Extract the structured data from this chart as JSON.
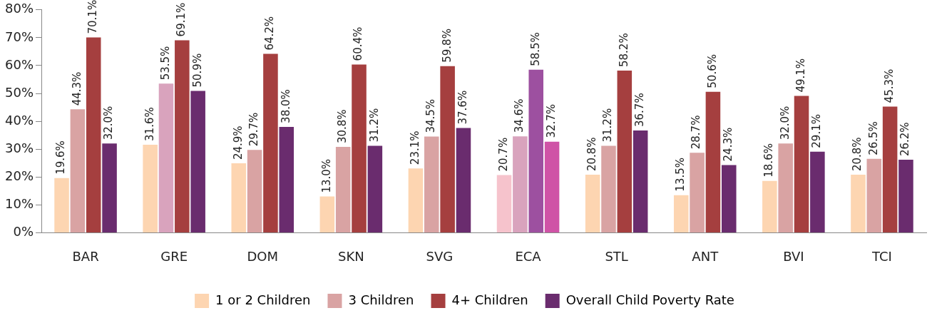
{
  "chart_data": {
    "type": "bar",
    "categories": [
      "BAR",
      "GRE",
      "DOM",
      "SKN",
      "SVG",
      "ECA",
      "STL",
      "ANT",
      "BVI",
      "TCI"
    ],
    "ylim": [
      0,
      80
    ],
    "yticks": [
      {
        "value": 0,
        "label": "0%"
      },
      {
        "value": 10,
        "label": "10%"
      },
      {
        "value": 20,
        "label": "20%"
      },
      {
        "value": 30,
        "label": "30%"
      },
      {
        "value": 40,
        "label": "40%"
      },
      {
        "value": 50,
        "label": "50%"
      },
      {
        "value": 60,
        "label": "60%"
      },
      {
        "value": 70,
        "label": "70%"
      },
      {
        "value": 80,
        "label": "80%"
      }
    ],
    "legend": "bottom",
    "series": [
      {
        "name": "1 or 2 Children",
        "color": "#fdd5b1",
        "colors": [
          "#fdd5b1",
          "#fdd5b1",
          "#fdd5b1",
          "#fdd5b1",
          "#fdd5b1",
          "#f6c3cc",
          "#fdd5b1",
          "#fdd5b1",
          "#fdd5b1",
          "#fdd5b1"
        ],
        "values": [
          19.6,
          31.6,
          24.9,
          13.0,
          23.1,
          20.7,
          20.8,
          13.5,
          18.6,
          20.8
        ],
        "value_labels": [
          "19.6%",
          "31.6%",
          "24.9%",
          "13.0%",
          "23.1%",
          "20.7%",
          "20.8%",
          "13.5%",
          "18.6%",
          "20.8%"
        ]
      },
      {
        "name": "3 Children",
        "color": "#d9a3a3",
        "colors": [
          "#d9a3a3",
          "#d9a3bd",
          "#d9a3a3",
          "#d9a3a3",
          "#d9a3a3",
          "#d9a3bd",
          "#d9a3a3",
          "#d9a3a3",
          "#d9a3a3",
          "#d9a3a3"
        ],
        "values": [
          44.3,
          53.5,
          29.7,
          30.8,
          34.5,
          34.6,
          31.2,
          28.7,
          32.0,
          26.5
        ],
        "value_labels": [
          "44.3%",
          "53.5%",
          "29.7%",
          "30.8%",
          "34.5%",
          "34.6%",
          "31.2%",
          "28.7%",
          "32.0%",
          "26.5%"
        ]
      },
      {
        "name": "4+ Children",
        "color": "#a53f3f",
        "colors": [
          "#a53f3f",
          "#a53f3f",
          "#a53f3f",
          "#a53f3f",
          "#a53f3f",
          "#9d50a0",
          "#a53f3f",
          "#a53f3f",
          "#a53f3f",
          "#a53f3f"
        ],
        "values": [
          70.1,
          69.1,
          64.2,
          60.4,
          59.8,
          58.5,
          58.2,
          50.6,
          49.1,
          45.3
        ],
        "value_labels": [
          "70.1%",
          "69.1%",
          "64.2%",
          "60.4%",
          "59.8%",
          "58.5%",
          "58.2%",
          "50.6%",
          "49.1%",
          "45.3%"
        ]
      },
      {
        "name": "Overall Child Poverty Rate",
        "color": "#6a2c6e",
        "colors": [
          "#6a2c6e",
          "#6a2c6e",
          "#6a2c6e",
          "#6a2c6e",
          "#6a2c6e",
          "#cf53a6",
          "#6a2c6e",
          "#6a2c6e",
          "#6a2c6e",
          "#6a2c6e"
        ],
        "values": [
          32.0,
          50.9,
          38.0,
          31.2,
          37.6,
          32.7,
          36.7,
          24.3,
          29.1,
          26.2
        ],
        "value_labels": [
          "32.0%",
          "50.9%",
          "38.0%",
          "31.2%",
          "37.6%",
          "32.7%",
          "36.7%",
          "24.3%",
          "29.1%",
          "26.2%"
        ]
      }
    ]
  }
}
